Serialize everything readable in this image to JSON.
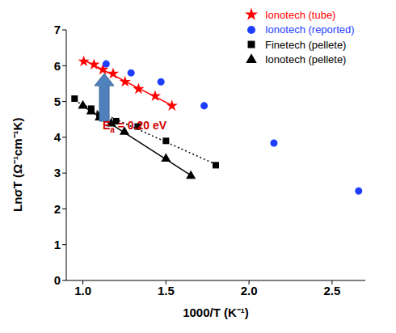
{
  "chart_data": {
    "type": "scatter",
    "x_label": "1000/T (K⁻¹)",
    "y_label": "LnσT (Ω⁻¹cm⁻¹K)",
    "xlim": [
      0.9,
      2.7
    ],
    "xticks": [
      {
        "value": 1.0,
        "label": "1.0"
      },
      {
        "value": 1.5,
        "label": "1.5"
      },
      {
        "value": 2.0,
        "label": "2.0"
      },
      {
        "value": 2.5,
        "label": "2.5"
      }
    ],
    "ylim": [
      0,
      7
    ],
    "yticks": [
      0,
      1,
      2,
      3,
      4,
      5,
      6,
      7
    ],
    "legend": "upper right",
    "annotations": [
      "Ea = 0.20 eV"
    ],
    "series": [
      {
        "name": "Ionotech (tube)",
        "color": "#ff0000",
        "marker": "star",
        "line_style": "solid",
        "x": [
          1.005,
          1.067,
          1.12,
          1.182,
          1.254,
          1.335,
          1.435,
          1.536
        ],
        "values": [
          6.12,
          6.03,
          5.89,
          5.78,
          5.55,
          5.35,
          5.15,
          4.88
        ]
      },
      {
        "name": "Ionotech (reported)",
        "color": "#1f3fff",
        "marker": "circle",
        "x": [
          1.14,
          1.29,
          1.47,
          1.73,
          2.15,
          2.66
        ],
        "values": [
          6.05,
          5.8,
          5.55,
          4.88,
          3.84,
          2.5
        ]
      },
      {
        "name": "Finetech (pellete)",
        "color": "#000000",
        "marker": "square",
        "line_style": "dotted",
        "x": [
          0.95,
          1.05,
          1.1,
          1.2,
          1.33,
          1.5,
          1.8
        ],
        "values": [
          5.08,
          4.8,
          4.62,
          4.45,
          4.3,
          3.9,
          3.22
        ]
      },
      {
        "name": "Ionotech (pellete)",
        "color": "#000000",
        "marker": "triangle",
        "line_style": "solid",
        "x": [
          1.0,
          1.05,
          1.1,
          1.17,
          1.25,
          1.5,
          1.65
        ],
        "values": [
          4.88,
          4.72,
          4.55,
          4.38,
          4.15,
          3.4,
          2.92
        ]
      }
    ]
  }
}
